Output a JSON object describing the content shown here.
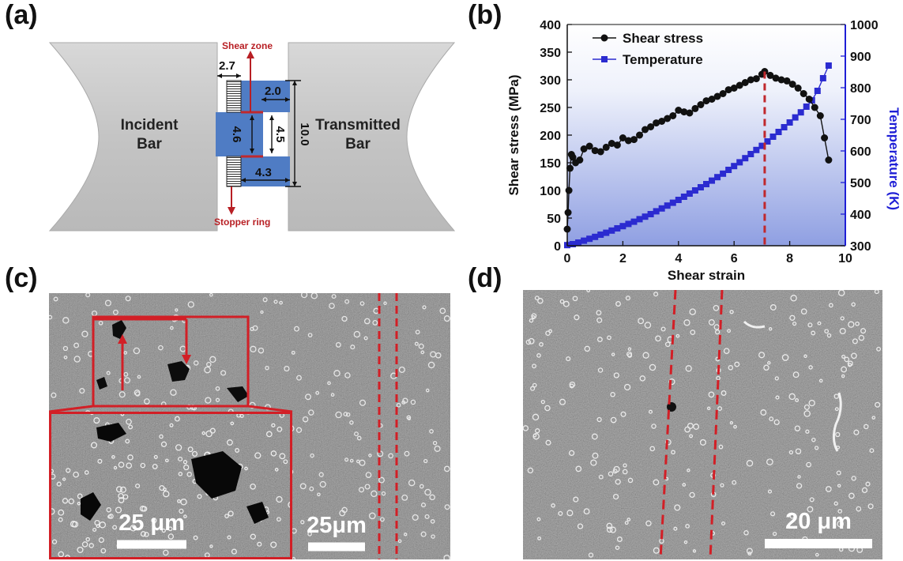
{
  "panels": {
    "a": {
      "label": "(a)",
      "incident_bar": [
        "Incident",
        "Bar"
      ],
      "transmitted_bar": [
        "Transmitted",
        "Bar"
      ],
      "shear_zone": "Shear zone",
      "stopper_ring": "Stopper ring",
      "dims": {
        "d1": "2.7",
        "d2": "2.0",
        "d3": "4.6",
        "d4": "4.5",
        "d5": "10.0",
        "d6": "4.3"
      },
      "colors": {
        "bar": "#c9c9c9",
        "specimen": "#4f7cc4",
        "annotation": "#b81f24"
      }
    },
    "b": {
      "label": "(b)"
    },
    "c": {
      "label": "(c)",
      "inset_scale": "25 μm",
      "scale": "25μm"
    },
    "d": {
      "label": "(d)",
      "scale": "20 μm"
    }
  },
  "chart_data": {
    "type": "line",
    "xlabel": "Shear strain",
    "ylabel": "Shear stress (MPa)",
    "y2label": "Temperature (K)",
    "xlim": [
      0,
      10
    ],
    "ylim": [
      0,
      400
    ],
    "y2lim": [
      300,
      1000
    ],
    "xticks": [
      "0",
      "2",
      "4",
      "6",
      "8",
      "10"
    ],
    "yticks": [
      "0",
      "50",
      "100",
      "150",
      "200",
      "250",
      "300",
      "350",
      "400"
    ],
    "y2ticks": [
      "300",
      "400",
      "500",
      "600",
      "700",
      "800",
      "900",
      "1000"
    ],
    "legend_position": "top-left",
    "vline_x": 7.1,
    "colors": {
      "stress": "#111111",
      "temperature": "#2b2bd0",
      "vline": "#c0282d",
      "axis2": "#1f1fd6"
    },
    "series": [
      {
        "name": "Shear stress",
        "axis": "left",
        "x": [
          0,
          0.03,
          0.06,
          0.1,
          0.15,
          0.2,
          0.3,
          0.45,
          0.6,
          0.8,
          1.0,
          1.2,
          1.4,
          1.6,
          1.8,
          2.0,
          2.2,
          2.4,
          2.6,
          2.8,
          3.0,
          3.2,
          3.4,
          3.6,
          3.8,
          4.0,
          4.2,
          4.4,
          4.6,
          4.8,
          5.0,
          5.2,
          5.4,
          5.6,
          5.8,
          6.0,
          6.2,
          6.4,
          6.6,
          6.8,
          7.0,
          7.1,
          7.3,
          7.5,
          7.7,
          7.9,
          8.1,
          8.3,
          8.5,
          8.7,
          8.9,
          9.1,
          9.25,
          9.4
        ],
        "y": [
          30,
          60,
          100,
          140,
          165,
          160,
          150,
          155,
          175,
          180,
          172,
          170,
          178,
          185,
          182,
          195,
          190,
          192,
          200,
          210,
          215,
          222,
          225,
          230,
          235,
          245,
          242,
          240,
          248,
          255,
          262,
          265,
          270,
          275,
          282,
          285,
          290,
          295,
          300,
          302,
          310,
          315,
          308,
          303,
          300,
          298,
          292,
          285,
          275,
          265,
          250,
          235,
          195,
          155
        ]
      },
      {
        "name": "Temperature",
        "axis": "right",
        "x": [
          0,
          0.2,
          0.4,
          0.6,
          0.8,
          1.0,
          1.2,
          1.4,
          1.6,
          1.8,
          2.0,
          2.2,
          2.4,
          2.6,
          2.8,
          3.0,
          3.2,
          3.4,
          3.6,
          3.8,
          4.0,
          4.2,
          4.4,
          4.6,
          4.8,
          5.0,
          5.2,
          5.4,
          5.6,
          5.8,
          6.0,
          6.2,
          6.4,
          6.6,
          6.8,
          7.0,
          7.2,
          7.4,
          7.6,
          7.8,
          8.0,
          8.2,
          8.4,
          8.6,
          8.8,
          9.0,
          9.2,
          9.4
        ],
        "y": [
          302,
          305,
          310,
          316,
          322,
          328,
          335,
          341,
          348,
          355,
          362,
          369,
          376,
          384,
          392,
          400,
          409,
          418,
          427,
          436,
          445,
          455,
          465,
          475,
          485,
          495,
          506,
          517,
          528,
          540,
          552,
          564,
          577,
          590,
          603,
          616,
          630,
          645,
          660,
          675,
          690,
          706,
          722,
          740,
          760,
          790,
          830,
          870
        ]
      }
    ]
  }
}
